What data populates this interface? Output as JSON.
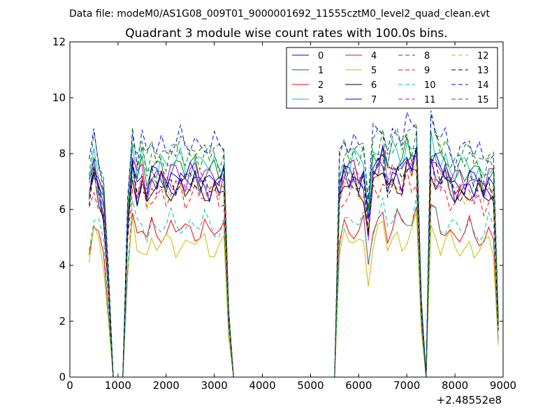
{
  "chart_data": {
    "type": "line",
    "suptitle": "Data file: modeM0/AS1G08_009T01_9000001692_11555cztM0_level2_quad_clean.evt",
    "title": "Quadrant 3 module wise count rates with 100.0s bins.",
    "xlabel": "",
    "ylabel": "",
    "xlim": [
      0,
      9000
    ],
    "ylim": [
      0,
      12
    ],
    "x_offset_label": "+2.48552e8",
    "x_ticks": [
      0,
      1000,
      2000,
      3000,
      4000,
      5000,
      6000,
      7000,
      8000,
      9000
    ],
    "x_tick_labels": [
      "0",
      "1000",
      "2000",
      "3000",
      "4000",
      "5000",
      "6000",
      "7000",
      "8000",
      "9000"
    ],
    "y_ticks": [
      0,
      2,
      4,
      6,
      8,
      10,
      12
    ],
    "y_tick_labels": [
      "0",
      "2",
      "4",
      "6",
      "8",
      "10",
      "12"
    ],
    "legend_location": "upper right",
    "legend_columns": 4,
    "series": [
      {
        "name": "0",
        "color": "#0000ff",
        "dash": "solid",
        "level": 7.0
      },
      {
        "name": "1",
        "color": "#008000",
        "dash": "solid",
        "level": 7.5
      },
      {
        "name": "2",
        "color": "#ff0000",
        "dash": "solid",
        "level": 5.3
      },
      {
        "name": "3",
        "color": "#00bfbf",
        "dash": "solid",
        "level": 7.7
      },
      {
        "name": "4",
        "color": "#bf00bf",
        "dash": "solid",
        "level": 7.3
      },
      {
        "name": "5",
        "color": "#bfbf00",
        "dash": "solid",
        "level": 4.8
      },
      {
        "name": "6",
        "color": "#000000",
        "dash": "solid",
        "level": 6.8
      },
      {
        "name": "7",
        "color": "#0000ff",
        "dash": "solid",
        "level": 7.2
      },
      {
        "name": "8",
        "color": "#008000",
        "dash": "dashed",
        "level": 8.2
      },
      {
        "name": "9",
        "color": "#ff0000",
        "dash": "dashed",
        "level": 6.6
      },
      {
        "name": "10",
        "color": "#00bfbf",
        "dash": "dashed",
        "level": 5.5
      },
      {
        "name": "11",
        "color": "#bf00bf",
        "dash": "dashed",
        "level": 7.0
      },
      {
        "name": "12",
        "color": "#bfbf00",
        "dash": "dashed",
        "level": 6.9
      },
      {
        "name": "13",
        "color": "#000000",
        "dash": "dashed",
        "level": 7.0
      },
      {
        "name": "14",
        "color": "#0000ff",
        "dash": "dashed",
        "level": 8.4
      },
      {
        "name": "15",
        "color": "#008000",
        "dash": "dashed",
        "level": 8.0
      }
    ],
    "activity_profile": {
      "x": [
        400,
        500,
        600,
        700,
        800,
        900,
        1000,
        1100,
        1200,
        1300,
        1400,
        1500,
        1600,
        1700,
        1800,
        1900,
        2000,
        2100,
        2200,
        2300,
        2400,
        2500,
        2600,
        2700,
        2800,
        2900,
        3000,
        3100,
        3200,
        3300,
        3400,
        3500,
        5400,
        5500,
        5600,
        5700,
        5800,
        5900,
        6000,
        6100,
        6200,
        6300,
        6400,
        6500,
        6600,
        6700,
        6800,
        6900,
        7000,
        7100,
        7200,
        7300,
        7400,
        7500,
        7600,
        7700,
        7800,
        7900,
        8000,
        8100,
        8200,
        8300,
        8400,
        8500,
        8600,
        8700,
        8800,
        8900
      ],
      "factor": [
        0.9,
        1.05,
        0.95,
        0.85,
        0.45,
        0.0,
        0.0,
        0.0,
        0.75,
        1.08,
        0.95,
        1.02,
        0.92,
        1.0,
        0.98,
        1.01,
        0.97,
        1.0,
        0.99,
        1.01,
        0.97,
        1.0,
        1.02,
        0.98,
        1.0,
        0.97,
        0.99,
        0.96,
        1.0,
        0.3,
        0.0,
        0.0,
        0.0,
        0.0,
        0.92,
        1.02,
        1.0,
        1.03,
        0.98,
        1.0,
        0.75,
        1.02,
        1.05,
        1.1,
        0.98,
        1.03,
        1.04,
        1.0,
        1.08,
        1.05,
        1.12,
        0.35,
        0.0,
        1.1,
        1.05,
        1.0,
        1.02,
        0.98,
        0.95,
        0.97,
        0.96,
        0.99,
        0.95,
        0.97,
        0.93,
        0.98,
        0.96,
        0.25
      ]
    }
  }
}
